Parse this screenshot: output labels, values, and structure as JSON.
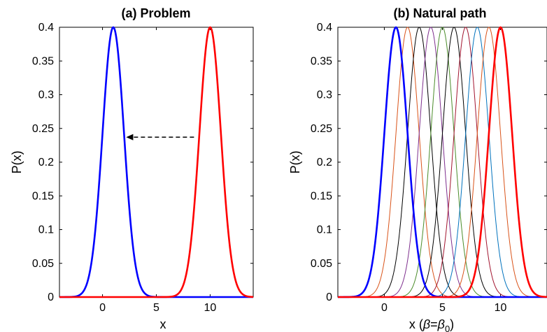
{
  "chart_data": [
    {
      "type": "line",
      "title": "(a) Problem",
      "xlabel": "x",
      "ylabel": "P(x)",
      "xlim": [
        -4,
        14
      ],
      "ylim": [
        0,
        0.4
      ],
      "xticks": [
        0,
        5,
        10
      ],
      "yticks": [
        0,
        0.05,
        0.1,
        0.15,
        0.2,
        0.25,
        0.3,
        0.35,
        0.4
      ],
      "grid": false,
      "curve_form": "gaussian",
      "series": [
        {
          "mean": 1,
          "std": 1,
          "peak": 0.4,
          "color": "#0000ff",
          "width": "thick"
        },
        {
          "mean": 10,
          "std": 1,
          "peak": 0.4,
          "color": "#ff0000",
          "width": "thick"
        }
      ],
      "annotations": [
        {
          "type": "dashed-arrow",
          "from": [
            8.5,
            0.237
          ],
          "to": [
            2.2,
            0.237
          ],
          "color": "#000000"
        }
      ]
    },
    {
      "type": "line",
      "title": "(b) Natural path",
      "xlabel": "x (β=β0)",
      "xlabel_parts": {
        "pre": "x (",
        "beta": "β",
        "eq": "=",
        "beta2": "β",
        "sub": "0",
        "post": ")"
      },
      "ylabel": "P(x)",
      "xlim": [
        -4,
        14
      ],
      "ylim": [
        0,
        0.4
      ],
      "xticks": [
        0,
        5,
        10
      ],
      "yticks": [
        0,
        0.05,
        0.1,
        0.15,
        0.2,
        0.25,
        0.3,
        0.35,
        0.4
      ],
      "grid": false,
      "curve_form": "gaussian",
      "series": [
        {
          "mean": 2,
          "std": 1,
          "peak": 0.4,
          "color": "#d95319",
          "width": "thin"
        },
        {
          "mean": 3,
          "std": 1,
          "peak": 0.4,
          "color": "#000000",
          "width": "thin"
        },
        {
          "mean": 4,
          "std": 1,
          "peak": 0.4,
          "color": "#7e2f8e",
          "width": "thin"
        },
        {
          "mean": 5,
          "std": 1,
          "peak": 0.4,
          "color": "#4a8c2a",
          "width": "thin"
        },
        {
          "mean": 6,
          "std": 1,
          "peak": 0.4,
          "color": "#000000",
          "width": "thin"
        },
        {
          "mean": 7,
          "std": 1,
          "peak": 0.4,
          "color": "#a2142f",
          "width": "thin"
        },
        {
          "mean": 8,
          "std": 1,
          "peak": 0.4,
          "color": "#0072bd",
          "width": "thin"
        },
        {
          "mean": 9,
          "std": 1,
          "peak": 0.4,
          "color": "#d95319",
          "width": "thin"
        },
        {
          "mean": 1,
          "std": 1,
          "peak": 0.4,
          "color": "#0000ff",
          "width": "thick"
        },
        {
          "mean": 10,
          "std": 1,
          "peak": 0.4,
          "color": "#ff0000",
          "width": "thick"
        }
      ]
    }
  ]
}
